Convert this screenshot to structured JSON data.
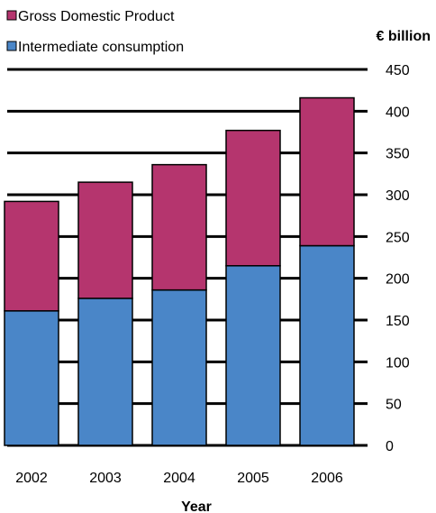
{
  "chart_data": {
    "type": "bar",
    "stacked": true,
    "categories": [
      "2002",
      "2003",
      "2004",
      "2005",
      "2006"
    ],
    "series": [
      {
        "name": "Intermediate consumption",
        "values": [
          161,
          176,
          186,
          215,
          239
        ],
        "color": "#4a86c8"
      },
      {
        "name": "Gross Domestic Product",
        "values": [
          131,
          139,
          150,
          162,
          177
        ],
        "color": "#b5356e"
      }
    ],
    "title": "",
    "xlabel": "Year",
    "ylabel": "€ billion",
    "ylim": [
      0,
      450
    ],
    "yticks": [
      "0",
      "50",
      "100",
      "150",
      "200",
      "250",
      "300",
      "350",
      "400",
      "450"
    ],
    "grid": true,
    "legend_position": "top-left",
    "legend_order": [
      "Gross Domestic Product",
      "Intermediate consumption"
    ]
  }
}
